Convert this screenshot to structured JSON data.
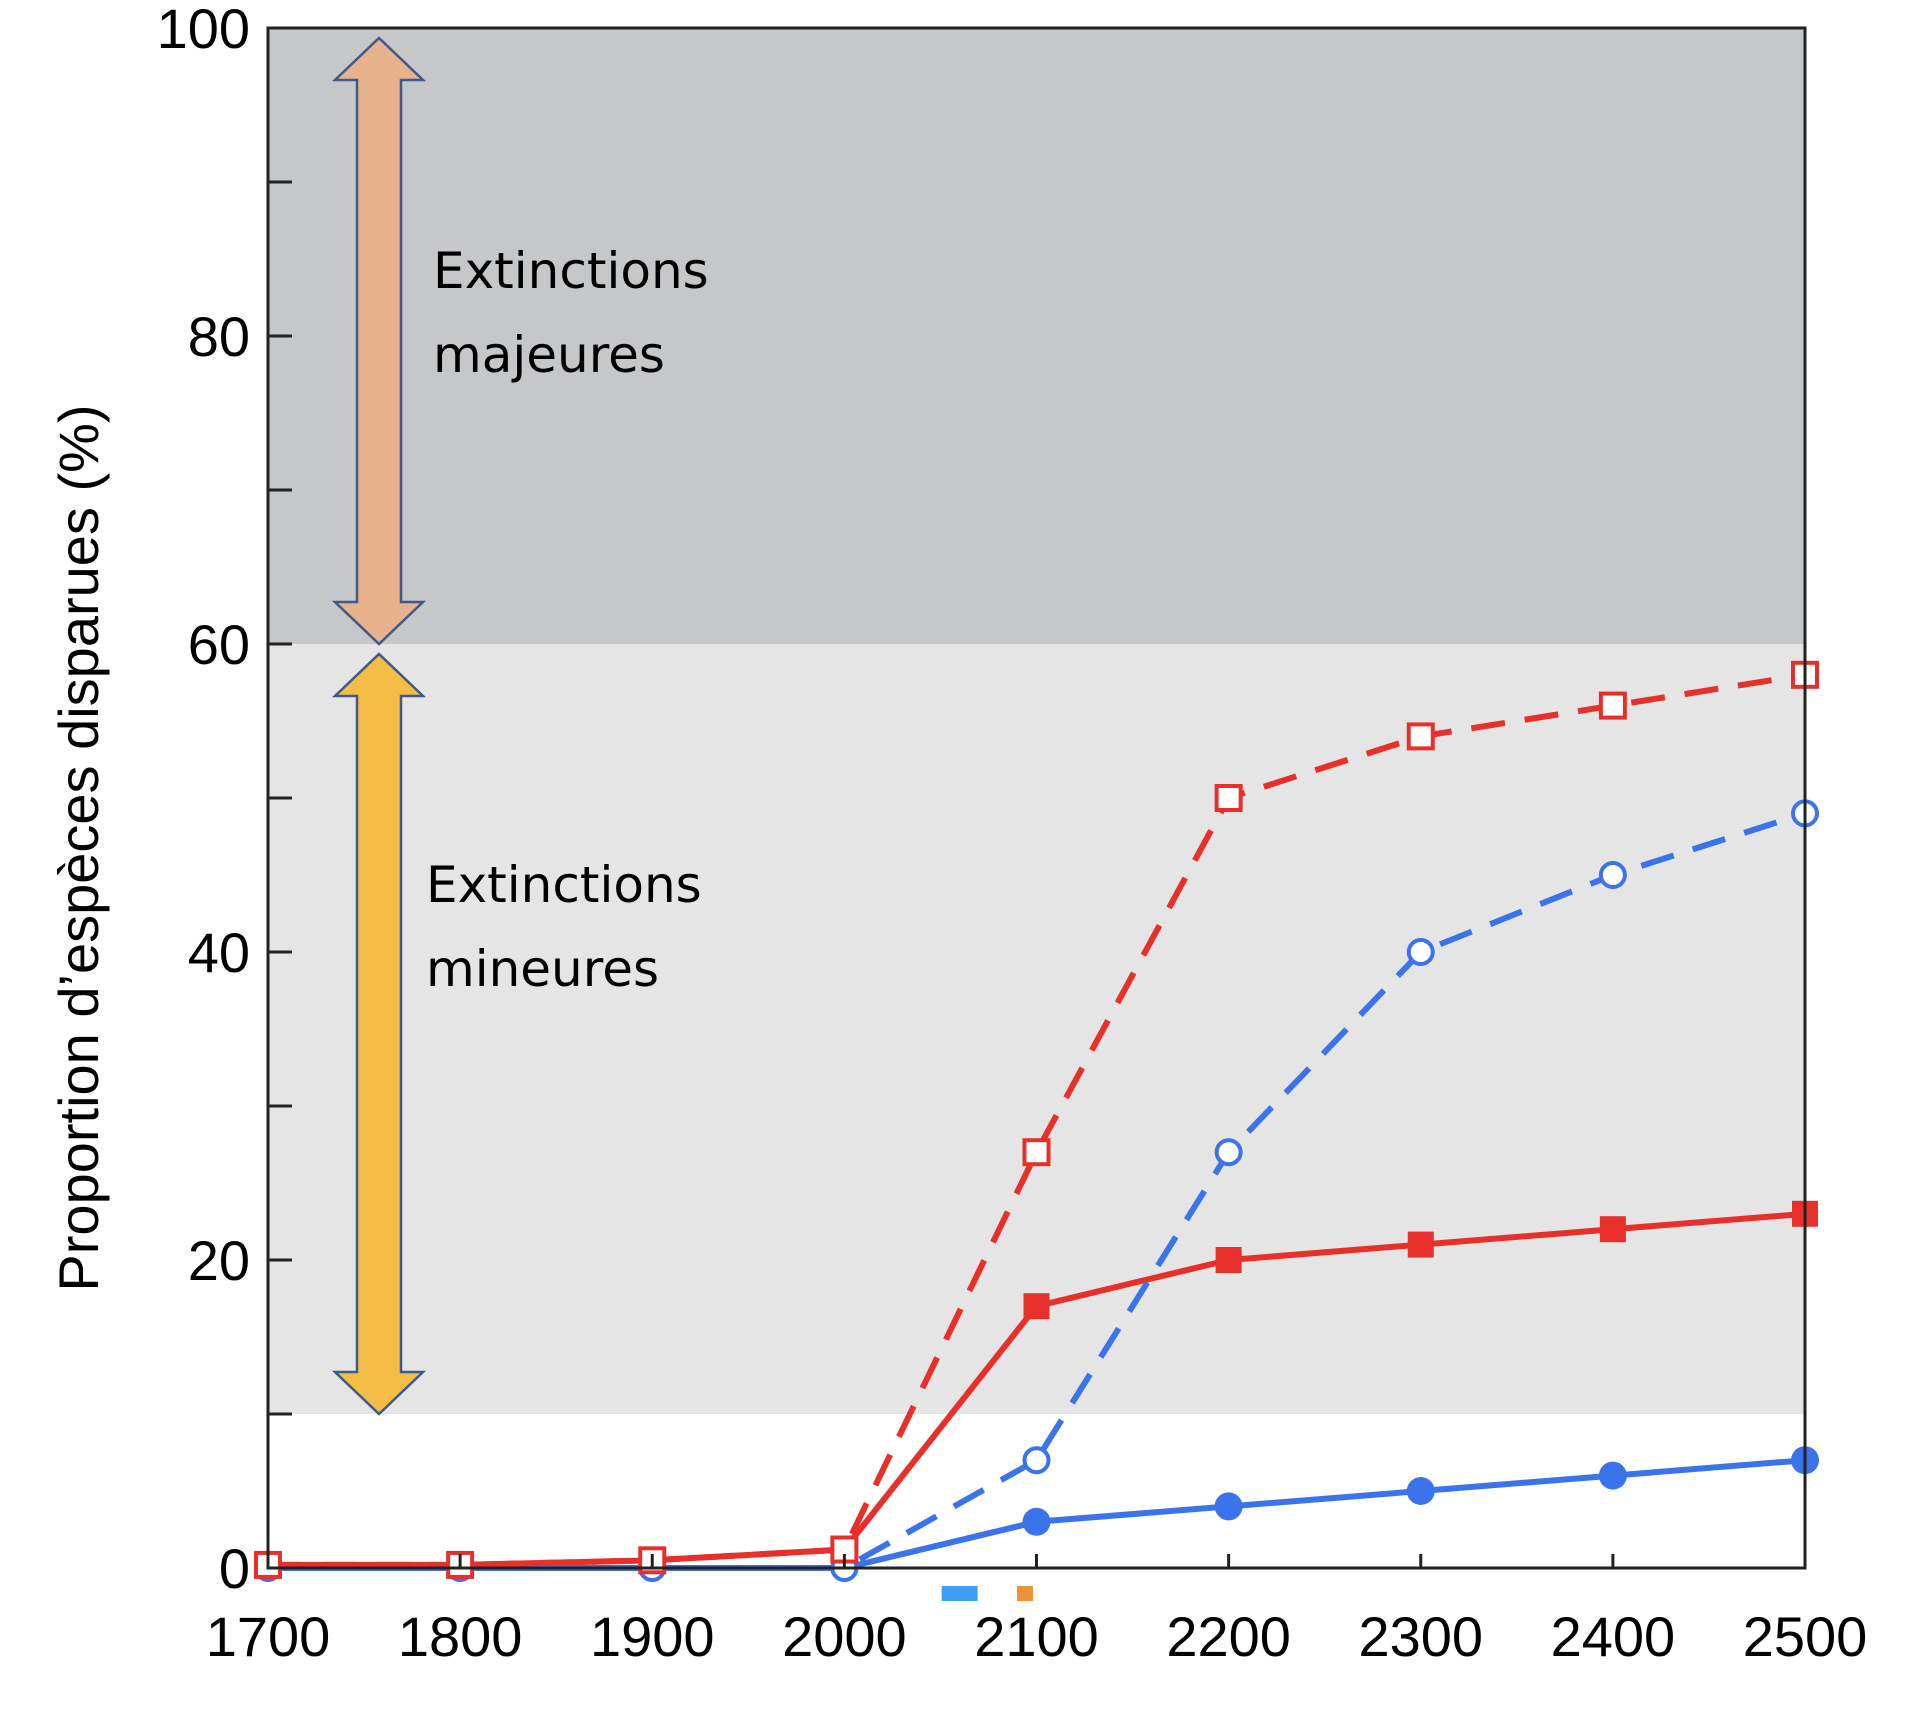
{
  "chart_data": {
    "type": "line",
    "title": "",
    "xlabel": "",
    "ylabel": "Proportion d’espèces disparues (%)",
    "xlim": [
      1700,
      2500
    ],
    "ylim": [
      0,
      100
    ],
    "x_ticks": [
      "1700",
      "1800",
      "1900",
      "2000",
      "2100",
      "2200",
      "2300",
      "2400",
      "2500"
    ],
    "y_ticks": [
      "0",
      "20",
      "40",
      "60",
      "80",
      "100"
    ],
    "y_minor_ticks": [
      10,
      30,
      50,
      70,
      90
    ],
    "grid": false,
    "legend": "none",
    "zones": [
      {
        "label_lines": [
          "Extinctions",
          "majeures"
        ],
        "from": 60,
        "to": 100,
        "fill": "#c6c7c9",
        "arrow_color": "#e8b38c"
      },
      {
        "label_lines": [
          "Extinctions",
          "mineures"
        ],
        "from": 10,
        "to": 60,
        "fill": "#e5e5e6",
        "arrow_color": "#f4bd45"
      }
    ],
    "axis_markers": [
      {
        "x": 2060,
        "color": "#3f9df5"
      },
      {
        "x": 2094,
        "color": "#f0913a"
      }
    ],
    "series": [
      {
        "style": "dashed",
        "marker": "open-square",
        "color": "#e8302a",
        "x": [
          1700,
          1800,
          1900,
          2000,
          2100,
          2200,
          2300,
          2400,
          2500
        ],
        "values": [
          0.2,
          0.2,
          0.5,
          1.2,
          27,
          50,
          54,
          56,
          58
        ]
      },
      {
        "style": "dashed",
        "marker": "open-circle",
        "color": "#3b73ea",
        "x": [
          1700,
          1800,
          1900,
          2000,
          2100,
          2200,
          2300,
          2400,
          2500
        ],
        "values": [
          0,
          0,
          0,
          0,
          7,
          27,
          40,
          45,
          49
        ]
      },
      {
        "style": "solid",
        "marker": "filled-square",
        "color": "#e8302a",
        "x": [
          1700,
          1800,
          1900,
          2000,
          2100,
          2200,
          2300,
          2400,
          2500
        ],
        "values": [
          0.2,
          0.2,
          0.5,
          1.2,
          17,
          20,
          21,
          22,
          23
        ]
      },
      {
        "style": "solid",
        "marker": "filled-circle",
        "color": "#3b73ea",
        "x": [
          1700,
          1800,
          1900,
          2000,
          2100,
          2200,
          2300,
          2400,
          2500
        ],
        "values": [
          0,
          0,
          0,
          0,
          3,
          4,
          5,
          6,
          7
        ]
      }
    ]
  }
}
